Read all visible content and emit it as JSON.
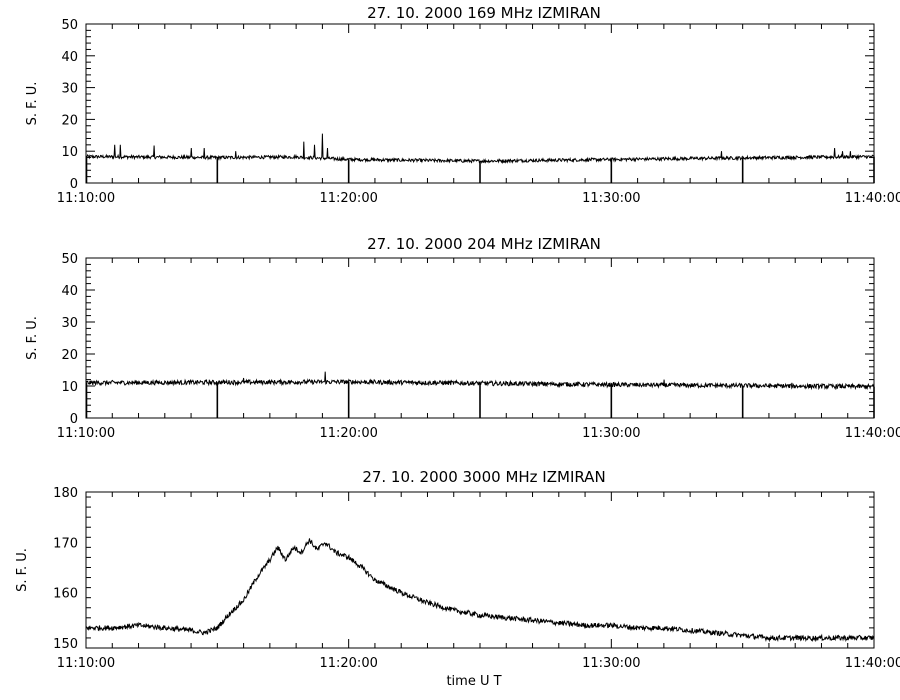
{
  "chart_data": [
    {
      "type": "line",
      "title": "27.  10.  2000    169  MHz    IZMIRAN",
      "ylabel": "S. F. U.",
      "xlabel": "",
      "xlim": [
        "11:10:00",
        "11:40:00"
      ],
      "ylim": [
        0,
        50
      ],
      "x_ticks": [
        "11:10:00",
        "11:20:00",
        "11:30:00",
        "11:40:00"
      ],
      "y_ticks": [
        0,
        10,
        20,
        30,
        40,
        50
      ],
      "baseline": [
        [
          0,
          8.3
        ],
        [
          5,
          8.0
        ],
        [
          8,
          8.2
        ],
        [
          10,
          7.4
        ],
        [
          15,
          6.9
        ],
        [
          20,
          7.4
        ],
        [
          25,
          7.9
        ],
        [
          30,
          8.3
        ]
      ],
      "noise": 0.5,
      "spikes": [
        [
          1.1,
          12
        ],
        [
          1.3,
          12
        ],
        [
          2.6,
          11.8
        ],
        [
          4.0,
          11
        ],
        [
          4.5,
          11
        ],
        [
          5.7,
          10
        ],
        [
          8.3,
          13
        ],
        [
          8.7,
          12
        ],
        [
          9.0,
          15.5
        ],
        [
          9.2,
          11
        ],
        [
          24.2,
          10
        ],
        [
          28.5,
          11
        ],
        [
          28.8,
          10
        ],
        [
          29.1,
          10
        ]
      ],
      "dropouts": [
        0,
        5,
        10,
        15,
        20,
        25,
        30
      ],
      "grid": false,
      "legend": "none"
    },
    {
      "type": "line",
      "title": "27.  10.  2000    204  MHz    IZMIRAN",
      "ylabel": "S. F. U.",
      "xlabel": "",
      "xlim": [
        "11:10:00",
        "11:40:00"
      ],
      "ylim": [
        0,
        50
      ],
      "x_ticks": [
        "11:10:00",
        "11:20:00",
        "11:30:00",
        "11:40:00"
      ],
      "y_ticks": [
        0,
        10,
        20,
        30,
        40,
        50
      ],
      "baseline": [
        [
          0,
          11.0
        ],
        [
          10,
          11.3
        ],
        [
          20,
          10.4
        ],
        [
          30,
          9.8
        ]
      ],
      "noise": 0.7,
      "spikes": [
        [
          9.1,
          14.5
        ],
        [
          6.0,
          12.5
        ],
        [
          22.0,
          12.0
        ]
      ],
      "dropouts": [
        0,
        5,
        10,
        15,
        20,
        25,
        30
      ],
      "grid": false,
      "legend": "none"
    },
    {
      "type": "line",
      "title": "27.  10.  2000    3000  MHz    IZMIRAN",
      "ylabel": "S. F. U.",
      "xlabel": "time   U T",
      "xlim": [
        "11:10:00",
        "11:40:00"
      ],
      "ylim": [
        149,
        180
      ],
      "x_ticks": [
        "11:10:00",
        "11:20:00",
        "11:30:00",
        "11:40:00"
      ],
      "y_ticks": [
        150,
        160,
        170,
        180
      ],
      "series": [
        {
          "x_minutes": [
            0,
            1,
            2,
            3,
            4,
            4.5,
            5,
            5.5,
            6,
            6.5,
            7,
            7.3,
            7.6,
            7.9,
            8.2,
            8.5,
            8.8,
            9.1,
            9.5,
            10,
            10.5,
            11,
            12,
            13,
            14,
            15,
            16,
            17,
            18,
            19,
            20,
            21,
            22,
            23,
            24,
            25,
            26,
            27,
            28,
            29,
            30
          ],
          "values": [
            153,
            153,
            153.5,
            153,
            152.5,
            152,
            153,
            156,
            158.5,
            163,
            166.5,
            169,
            166.5,
            169,
            168,
            170.5,
            168.5,
            170,
            168,
            167,
            165,
            162.5,
            160,
            158,
            156.5,
            155.5,
            155,
            154.5,
            154,
            153.5,
            153.5,
            153,
            153,
            152.5,
            152,
            151.5,
            151,
            151,
            151,
            151,
            151
          ]
        }
      ],
      "noise": 0.5,
      "grid": false,
      "legend": "none"
    }
  ]
}
